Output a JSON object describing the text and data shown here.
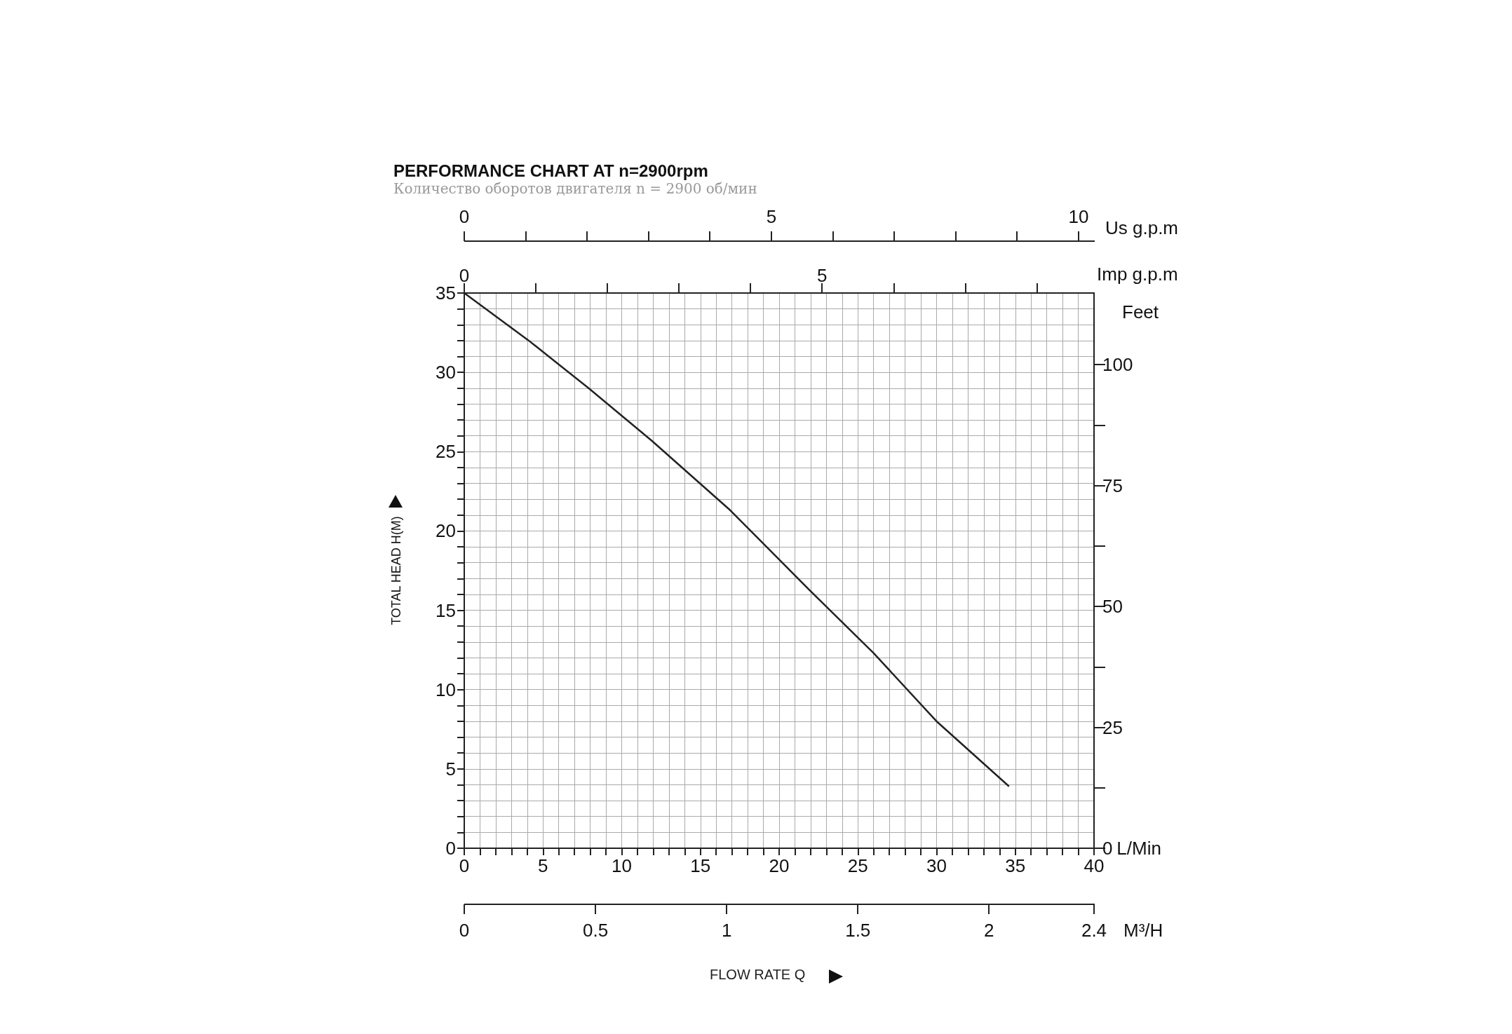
{
  "chart_data": {
    "type": "line",
    "title": "PERFORMANCE CHART AT n=2900rpm",
    "subtitle": "Количество оборотов двигателя n = 2900 об/мин",
    "xlabel": "L/Min",
    "ylabel": "TOTAL HEAD H(M)",
    "y2label": "Feet",
    "x2label": "Imp g.p.m",
    "annotations": [
      "0",
      "5",
      "10",
      "Us g.p.m",
      "0",
      "0.5",
      "1",
      "1.5",
      "2",
      "2.4",
      "M³/H",
      "FLOW RATE Q"
    ],
    "xlim": [
      0,
      40
    ],
    "xticks": [
      0,
      {
        "value": 1,
        "label": null
      },
      {
        "value": 2,
        "label": null
      },
      {
        "value": 3,
        "label": null
      },
      {
        "value": 4,
        "label": null
      },
      5,
      {
        "value": 6,
        "label": null
      },
      {
        "value": 7,
        "label": null
      },
      {
        "value": 8,
        "label": null
      },
      {
        "value": 9,
        "label": null
      },
      10,
      {
        "value": 11,
        "label": null
      },
      {
        "value": 12,
        "label": null
      },
      {
        "value": 13,
        "label": null
      },
      {
        "value": 14,
        "label": null
      },
      15,
      {
        "value": 16,
        "label": null
      },
      {
        "value": 17,
        "label": null
      },
      {
        "value": 18,
        "label": null
      },
      {
        "value": 19,
        "label": null
      },
      20,
      {
        "value": 21,
        "label": null
      },
      {
        "value": 22,
        "label": null
      },
      {
        "value": 23,
        "label": null
      },
      {
        "value": 24,
        "label": null
      },
      25,
      {
        "value": 26,
        "label": null
      },
      {
        "value": 27,
        "label": null
      },
      {
        "value": 28,
        "label": null
      },
      {
        "value": 29,
        "label": null
      },
      30,
      {
        "value": 31,
        "label": null
      },
      {
        "value": 32,
        "label": null
      },
      {
        "value": 33,
        "label": null
      },
      {
        "value": 34,
        "label": null
      },
      35,
      {
        "value": 36,
        "label": null
      },
      {
        "value": 37,
        "label": null
      },
      {
        "value": 38,
        "label": null
      },
      {
        "value": 39,
        "label": null
      },
      40
    ],
    "ylim": [
      0,
      35
    ],
    "yticks": [
      0,
      {
        "value": 1,
        "label": null
      },
      {
        "value": 2,
        "label": null
      },
      {
        "value": 3,
        "label": null
      },
      {
        "value": 4,
        "label": null
      },
      5,
      {
        "value": 6,
        "label": null
      },
      {
        "value": 7,
        "label": null
      },
      {
        "value": 8,
        "label": null
      },
      {
        "value": 9,
        "label": null
      },
      10,
      {
        "value": 11,
        "label": null
      },
      {
        "value": 12,
        "label": null
      },
      {
        "value": 13,
        "label": null
      },
      {
        "value": 14,
        "label": null
      },
      15,
      {
        "value": 16,
        "label": null
      },
      {
        "value": 17,
        "label": null
      },
      {
        "value": 18,
        "label": null
      },
      {
        "value": 19,
        "label": null
      },
      20,
      {
        "value": 21,
        "label": null
      },
      {
        "value": 22,
        "label": null
      },
      {
        "value": 23,
        "label": null
      },
      {
        "value": 24,
        "label": null
      },
      25,
      {
        "value": 26,
        "label": null
      },
      {
        "value": 27,
        "label": null
      },
      {
        "value": 28,
        "label": null
      },
      {
        "value": 29,
        "label": null
      },
      30,
      {
        "value": 31,
        "label": null
      },
      {
        "value": 32,
        "label": null
      },
      {
        "value": 33,
        "label": null
      },
      {
        "value": 34,
        "label": null
      },
      35
    ],
    "y2lim": [
      0,
      114.8
    ],
    "y2ticks": [
      0,
      {
        "value": 12.5,
        "label": null
      },
      25,
      {
        "value": 37.5,
        "label": null
      },
      50,
      {
        "value": 62.5,
        "label": null
      },
      75,
      {
        "value": 87.5,
        "label": null
      },
      100
    ],
    "x2lim": [
      0,
      8.8
    ],
    "x2ticks": [
      0,
      {
        "value": 1,
        "label": null
      },
      {
        "value": 2,
        "label": null
      },
      {
        "value": 3,
        "label": null
      },
      {
        "value": 4,
        "label": null
      },
      5,
      {
        "value": 6,
        "label": null
      },
      {
        "value": 7,
        "label": null
      },
      {
        "value": 8,
        "label": null
      }
    ],
    "grid": true,
    "marker": "none",
    "line_style": "solid",
    "series": [
      {
        "color": "#222222",
        "x": [
          0,
          4.1,
          7.9,
          11.9,
          16.9,
          21.9,
          26,
          30,
          34.6
        ],
        "values": [
          35,
          32,
          29,
          25.7,
          21.3,
          16.3,
          12.3,
          8,
          3.9
        ]
      }
    ]
  }
}
